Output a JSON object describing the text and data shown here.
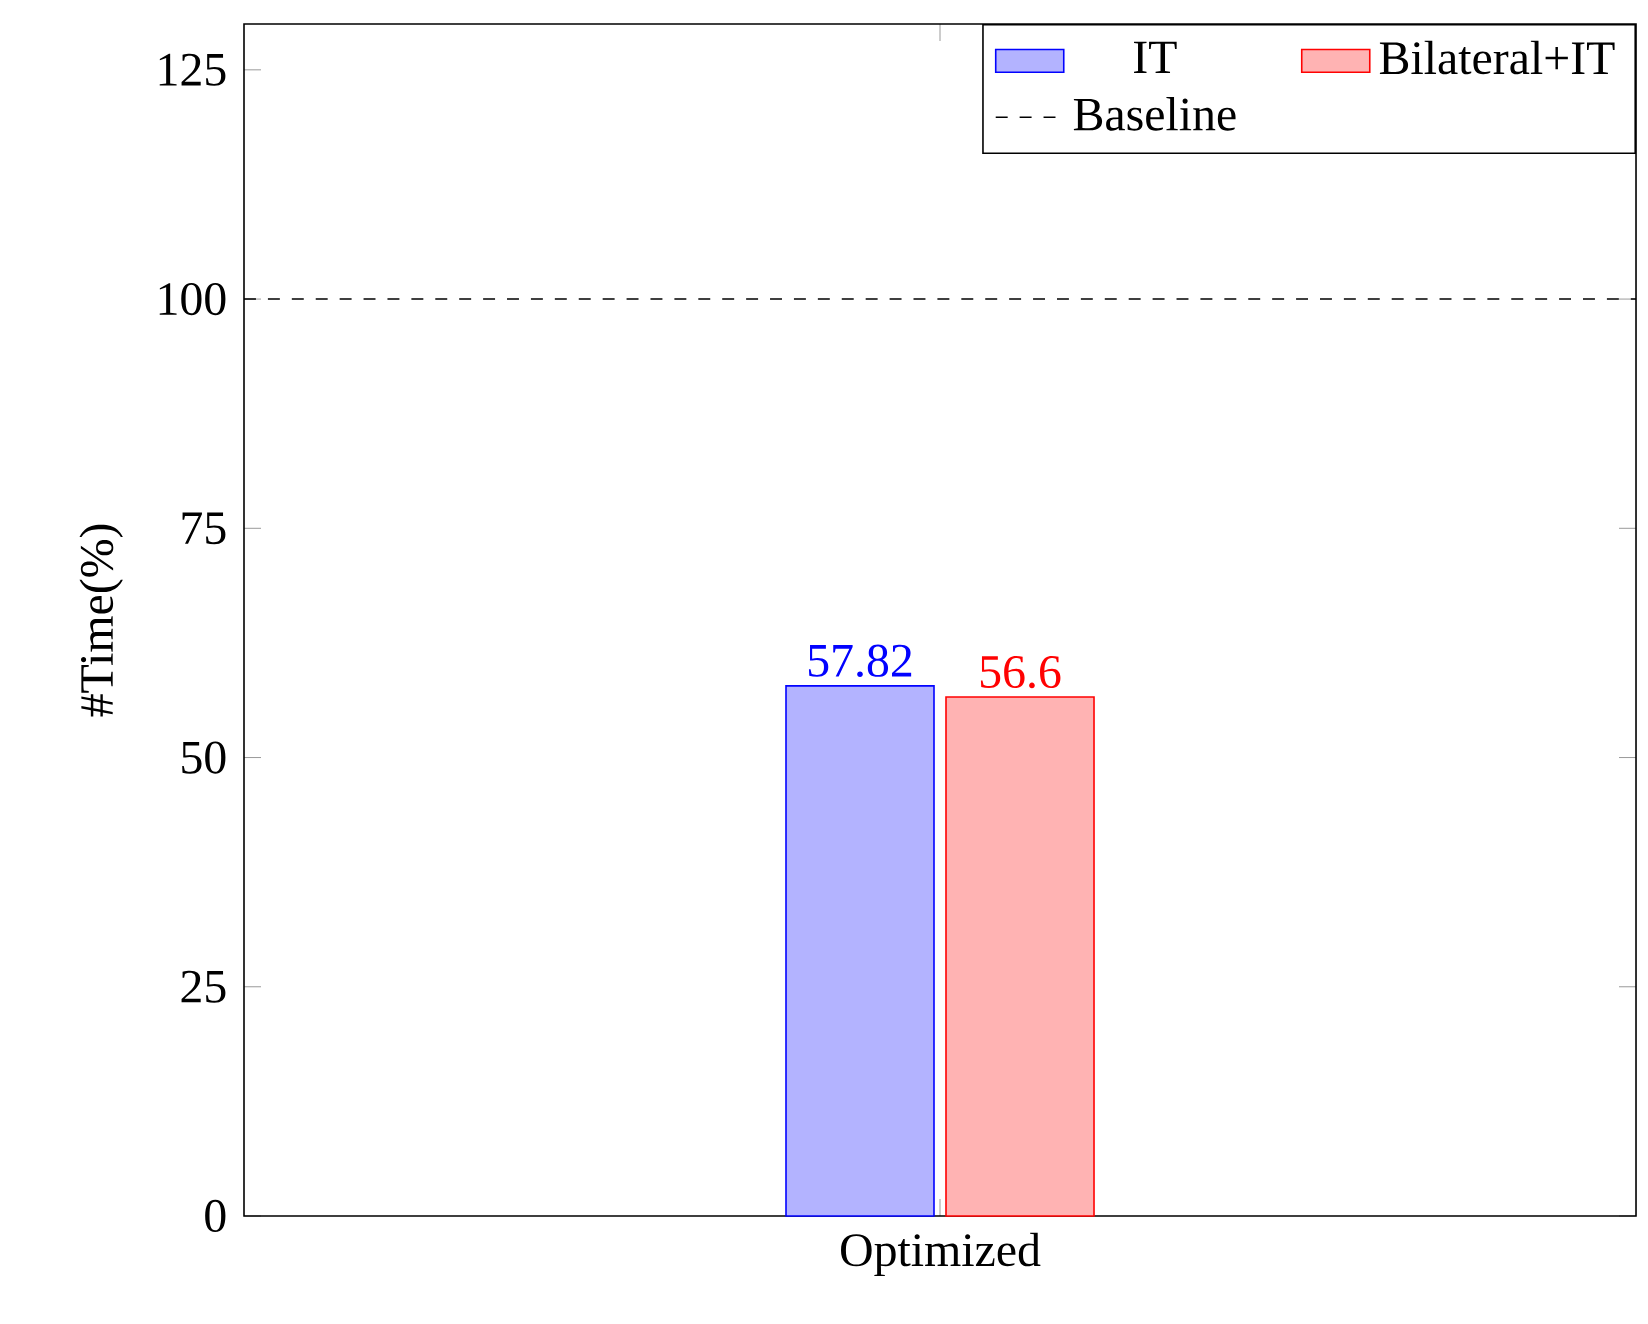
{
  "chart_data": {
    "type": "bar",
    "ylabel": "#Time(%)",
    "categories": [
      "Optimized"
    ],
    "series": [
      {
        "name": "IT",
        "color": "#b3b3ff",
        "values": [
          57.82
        ]
      },
      {
        "name": "Bilateral+IT",
        "color": "#ffb3b3",
        "values": [
          56.6
        ]
      }
    ],
    "ylim": [
      0,
      130
    ],
    "yticks": [
      0,
      25,
      50,
      75,
      100,
      125
    ],
    "data_labels": true,
    "legend": "top right",
    "ref_lines": [
      {
        "axis": "y",
        "value": 100,
        "label": "Baseline",
        "line_style": "dashed",
        "color": "#000000"
      }
    ]
  }
}
